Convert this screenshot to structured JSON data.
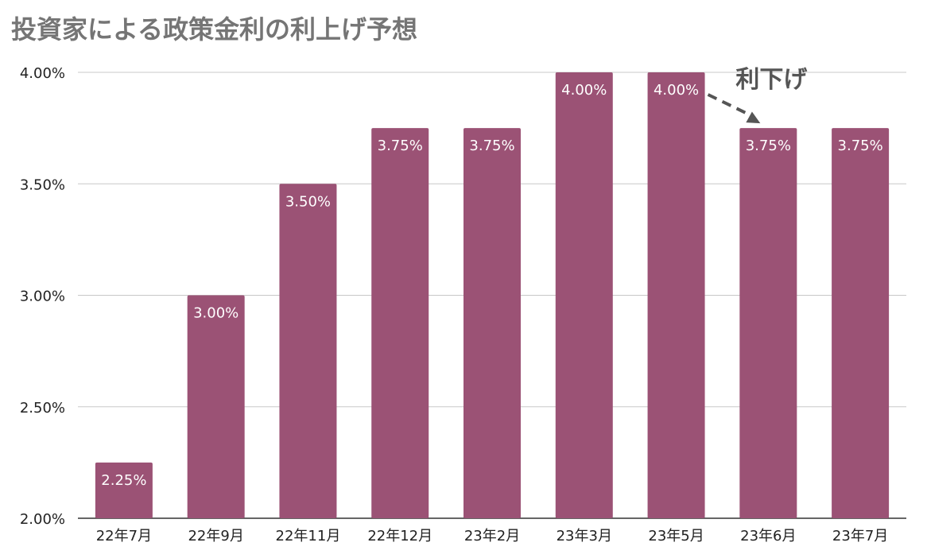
{
  "chart_data": {
    "type": "bar",
    "title": "投資家による政策金利の利上げ予想",
    "categories": [
      "22年7月",
      "22年9月",
      "22年11月",
      "22年12月",
      "23年2月",
      "23年3月",
      "23年5月",
      "23年6月",
      "23年7月"
    ],
    "values": [
      2.25,
      3.0,
      3.5,
      3.75,
      3.75,
      4.0,
      4.0,
      3.75,
      3.75
    ],
    "data_labels": [
      "2.25%",
      "3.00%",
      "3.50%",
      "3.75%",
      "3.75%",
      "4.00%",
      "4.00%",
      "3.75%",
      "3.75%"
    ],
    "y_ticks": [
      2.0,
      2.5,
      3.0,
      3.5,
      4.0
    ],
    "y_tick_labels": [
      "2.00%",
      "2.50%",
      "3.00%",
      "3.50%",
      "4.00%"
    ],
    "ylim": [
      2.0,
      4.0
    ],
    "xlabel": "",
    "ylabel": "",
    "grid": true,
    "bar_color": "#9b5275",
    "annotation": {
      "text": "利下げ",
      "from_category": "23年5月",
      "to_category": "23年6月",
      "arrow_style": "dashed"
    }
  }
}
